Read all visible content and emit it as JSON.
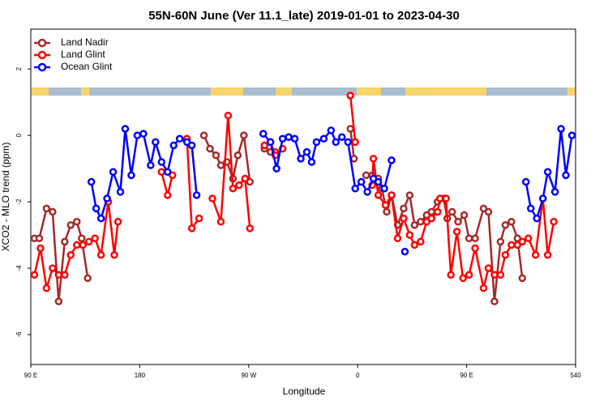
{
  "chart_data": {
    "type": "line",
    "title": "55N-60N June (Ver 11.1_late)   2019-01-01 to 2023-04-30",
    "xlabel": "Longitude",
    "ylabel": "XCO2 - MLO trend (ppm)",
    "xlim": [
      90,
      540
    ],
    "ylim": [
      -6.9,
      3.2
    ],
    "xticks": [
      {
        "value": 90,
        "label": "90 E"
      },
      180,
      {
        "value": 270,
        "label": "90 W"
      },
      {
        "value": 360,
        "label": "0"
      },
      {
        "value": 450,
        "label": "90 E"
      },
      540
    ],
    "yticks": [
      -6,
      -4,
      -2,
      0,
      2
    ],
    "legend": "top-left",
    "grid": false,
    "series": [
      {
        "name": "Land Nadir",
        "color": "#a52a2a",
        "x": [
          93,
          97,
          103,
          108,
          113,
          118,
          123,
          128,
          132,
          137,
          null,
          233,
          238,
          243,
          247,
          252,
          257,
          261,
          266,
          271,
          null,
          283,
          288,
          292,
          null,
          354,
          357,
          null,
          367,
          372,
          377,
          380,
          384,
          388,
          393,
          398,
          403,
          407,
          412,
          417,
          421,
          426,
          431,
          434,
          438,
          443,
          448,
          452,
          457,
          464,
          468,
          473,
          478,
          482,
          487,
          492,
          496
        ],
        "values": [
          -3.1,
          -3.1,
          -2.2,
          -2.3,
          -5.0,
          -3.2,
          -2.7,
          -2.6,
          -3.1,
          -4.3,
          null,
          0.0,
          -0.4,
          -0.6,
          -0.9,
          -0.8,
          -1.3,
          -0.6,
          0.0,
          -1.4,
          null,
          -0.4,
          -0.5,
          -0.5,
          null,
          0.2,
          -0.7,
          null,
          -1.2,
          -1.2,
          -1.3,
          -1.6,
          -2.3,
          -1.8,
          -2.7,
          -2.2,
          -1.8,
          -2.7,
          -2.6,
          -2.4,
          -2.3,
          -2.0,
          -1.9,
          -2.5,
          -2.3,
          -2.6,
          -2.4,
          -3.1,
          -3.1,
          -2.2,
          -2.3,
          -5.0,
          -3.2,
          -2.7,
          -2.6,
          -3.1,
          -4.3
        ]
      },
      {
        "name": "Land Glint",
        "color": "#ff0000",
        "x": [
          93,
          98,
          103,
          108,
          113,
          118,
          123,
          128,
          133,
          138,
          143,
          148,
          154,
          159,
          162,
          null,
          198,
          203,
          207,
          null,
          219,
          223,
          229,
          null,
          240,
          247,
          253,
          257,
          262,
          267,
          271,
          null,
          283,
          288,
          292,
          298,
          null,
          354,
          358,
          null,
          372,
          373,
          377,
          383,
          388,
          393,
          398,
          403,
          407,
          412,
          417,
          421,
          426,
          428,
          433,
          437,
          442,
          447,
          452,
          457,
          464,
          468,
          473,
          478,
          482,
          487,
          492,
          496,
          501,
          507,
          513,
          517,
          522
        ],
        "values": [
          -4.2,
          -3.4,
          -4.6,
          -4.0,
          -4.2,
          -4.2,
          -3.6,
          -3.3,
          -3.3,
          -3.2,
          -3.1,
          -3.6,
          -2.0,
          -3.6,
          -2.6,
          null,
          -1.1,
          -1.8,
          -1.2,
          null,
          -0.1,
          -2.8,
          -2.5,
          null,
          -1.9,
          -2.6,
          0.6,
          -1.6,
          -1.5,
          -1.3,
          -2.8,
          null,
          -0.3,
          -0.2,
          -0.6,
          -0.4,
          null,
          1.2,
          -0.2,
          null,
          -1.5,
          -0.7,
          -1.8,
          -2.1,
          -1.8,
          -3.1,
          -2.5,
          -3.0,
          -3.3,
          -3.2,
          -2.6,
          -2.5,
          -2.3,
          -1.9,
          -1.9,
          -4.2,
          -2.9,
          -4.3,
          -4.2,
          -3.4,
          -4.6,
          -4.0,
          -4.2,
          -4.2,
          -3.6,
          -3.3,
          -3.3,
          -3.2,
          -3.1,
          -3.6,
          -1.9,
          -3.6,
          -2.6
        ]
      },
      {
        "name": "Ocean Glint",
        "color": "#0000ff",
        "x": [
          140,
          144,
          148,
          153,
          158,
          164,
          168,
          173,
          178,
          183,
          189,
          193,
          198,
          203,
          208,
          213,
          219,
          223,
          227,
          null,
          282,
          288,
          293,
          298,
          303,
          308,
          313,
          318,
          322,
          326,
          332,
          338,
          342,
          347,
          352,
          358,
          363,
          368,
          373,
          377,
          382,
          388,
          null,
          399,
          null,
          499,
          503,
          508,
          513,
          517,
          523,
          528,
          532,
          537
        ],
        "values": [
          -1.4,
          -2.2,
          -2.5,
          -1.9,
          -1.1,
          -1.7,
          0.2,
          -1.2,
          0.0,
          0.05,
          -0.9,
          -0.2,
          -0.8,
          -1.1,
          -0.3,
          -0.1,
          -0.2,
          -0.3,
          -1.8,
          null,
          0.05,
          -0.2,
          -1.0,
          -0.1,
          -0.05,
          -0.1,
          -0.7,
          -0.5,
          -0.8,
          -0.2,
          -0.1,
          0.15,
          -0.2,
          -0.05,
          -0.2,
          -1.6,
          -1.4,
          -1.7,
          -1.3,
          -1.4,
          -1.6,
          -0.75,
          null,
          -3.5,
          null,
          -1.4,
          -2.2,
          -2.5,
          -1.9,
          -1.1,
          -1.7,
          0.2,
          -1.2,
          0.0
        ]
      }
    ]
  }
}
